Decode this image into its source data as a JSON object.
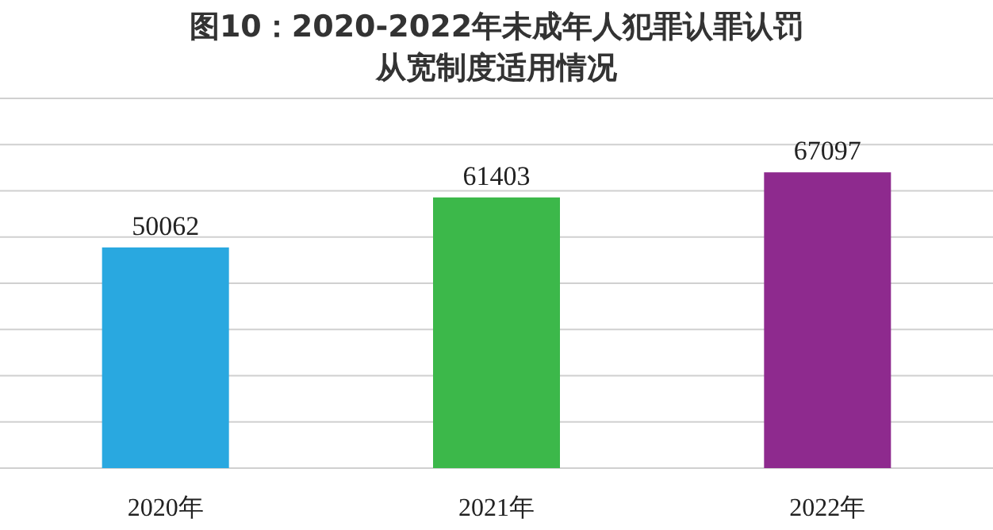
{
  "chart_data": {
    "type": "bar",
    "title": "图10：2020-2022年未成年人犯罪认罪认罚从宽制度适用情况",
    "categories": [
      "2020年",
      "2021年",
      "2022年"
    ],
    "values": [
      50062,
      61403,
      67097
    ],
    "colors": [
      "#29a8e0",
      "#3cb84a",
      "#8e2a8e"
    ],
    "data_labels": true,
    "grid": "y"
  }
}
